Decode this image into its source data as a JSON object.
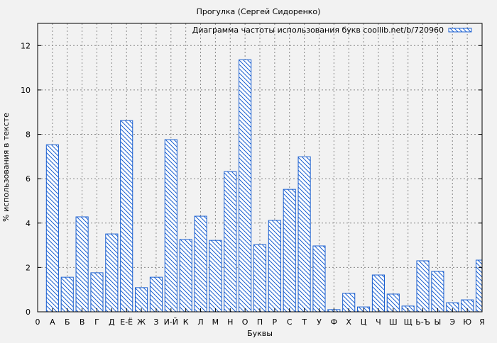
{
  "chart_data": {
    "type": "bar",
    "title": "Прогулка (Сергей Сидоренко)",
    "xlabel": "Буквы",
    "ylabel": "% использования в тексте",
    "x_tick_labels": [
      "0",
      "А",
      "Б",
      "В",
      "Г",
      "Д",
      "Е-Ё",
      "Ж",
      "З",
      "И-Й",
      "К",
      "Л",
      "М",
      "Н",
      "О",
      "П",
      "Р",
      "С",
      "Т",
      "У",
      "Ф",
      "Х",
      "Ц",
      "Ч",
      "Ш",
      "Щ",
      "Ь-Ъ",
      "Ы",
      "Э",
      "Ю",
      "Я"
    ],
    "categories": [
      "А",
      "Б",
      "В",
      "Г",
      "Д",
      "Е-Ё",
      "Ж",
      "З",
      "И-Й",
      "К",
      "Л",
      "М",
      "Н",
      "О",
      "П",
      "Р",
      "С",
      "Т",
      "У",
      "Ф",
      "Х",
      "Ц",
      "Ч",
      "Ш",
      "Щ",
      "Ь-Ъ",
      "Ы",
      "Э",
      "Ю",
      "Я"
    ],
    "series": [
      {
        "name": "Диаграмма частоты использования букв coollib.net/b/720960",
        "values": [
          7.53,
          1.56,
          4.28,
          1.76,
          3.51,
          8.62,
          1.09,
          1.56,
          7.76,
          3.26,
          4.31,
          3.22,
          6.32,
          11.36,
          3.03,
          4.12,
          5.52,
          6.99,
          2.97,
          0.1,
          0.83,
          0.22,
          1.66,
          0.8,
          0.26,
          2.3,
          1.82,
          0.41,
          0.54,
          2.33
        ]
      }
    ],
    "yticks": [
      0,
      2,
      4,
      6,
      8,
      10,
      12
    ],
    "ylim": [
      0,
      13
    ],
    "xlim": [
      0,
      30
    ],
    "grid": true,
    "legend_position": "top-right",
    "bar_color": "#1a5fd0"
  }
}
